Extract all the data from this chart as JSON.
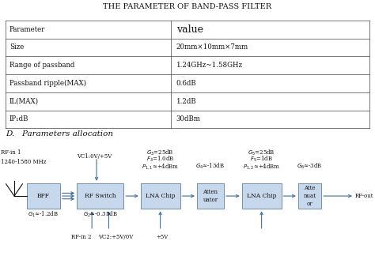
{
  "title": "THE PARAMETER OF BAND-PASS FILTER",
  "table_params": [
    "Parameter",
    "Size",
    "Range of passband",
    "Passband ripple(MAX)",
    "IL(MAX)",
    "IP₁dB"
  ],
  "table_values": [
    "value",
    "20mm×10mm×7mm",
    "1.24GHz~1.58GHz",
    "0.6dB",
    "1.2dB",
    "30dBm"
  ],
  "section_title": "D.   Parameters allocation",
  "bg_color": "#ffffff",
  "box_color": "#c8d8ec",
  "box_edge": "#7090b0",
  "arrow_color": "#4070a0",
  "text_color": "#111111",
  "table_line_color": "#444444",
  "title_fontsize": 7.0,
  "table_fontsize": 6.2,
  "value_header_fontsize": 9.0,
  "section_fontsize": 7.5,
  "diagram_fontsize": 5.5,
  "label_fontsize": 5.0
}
